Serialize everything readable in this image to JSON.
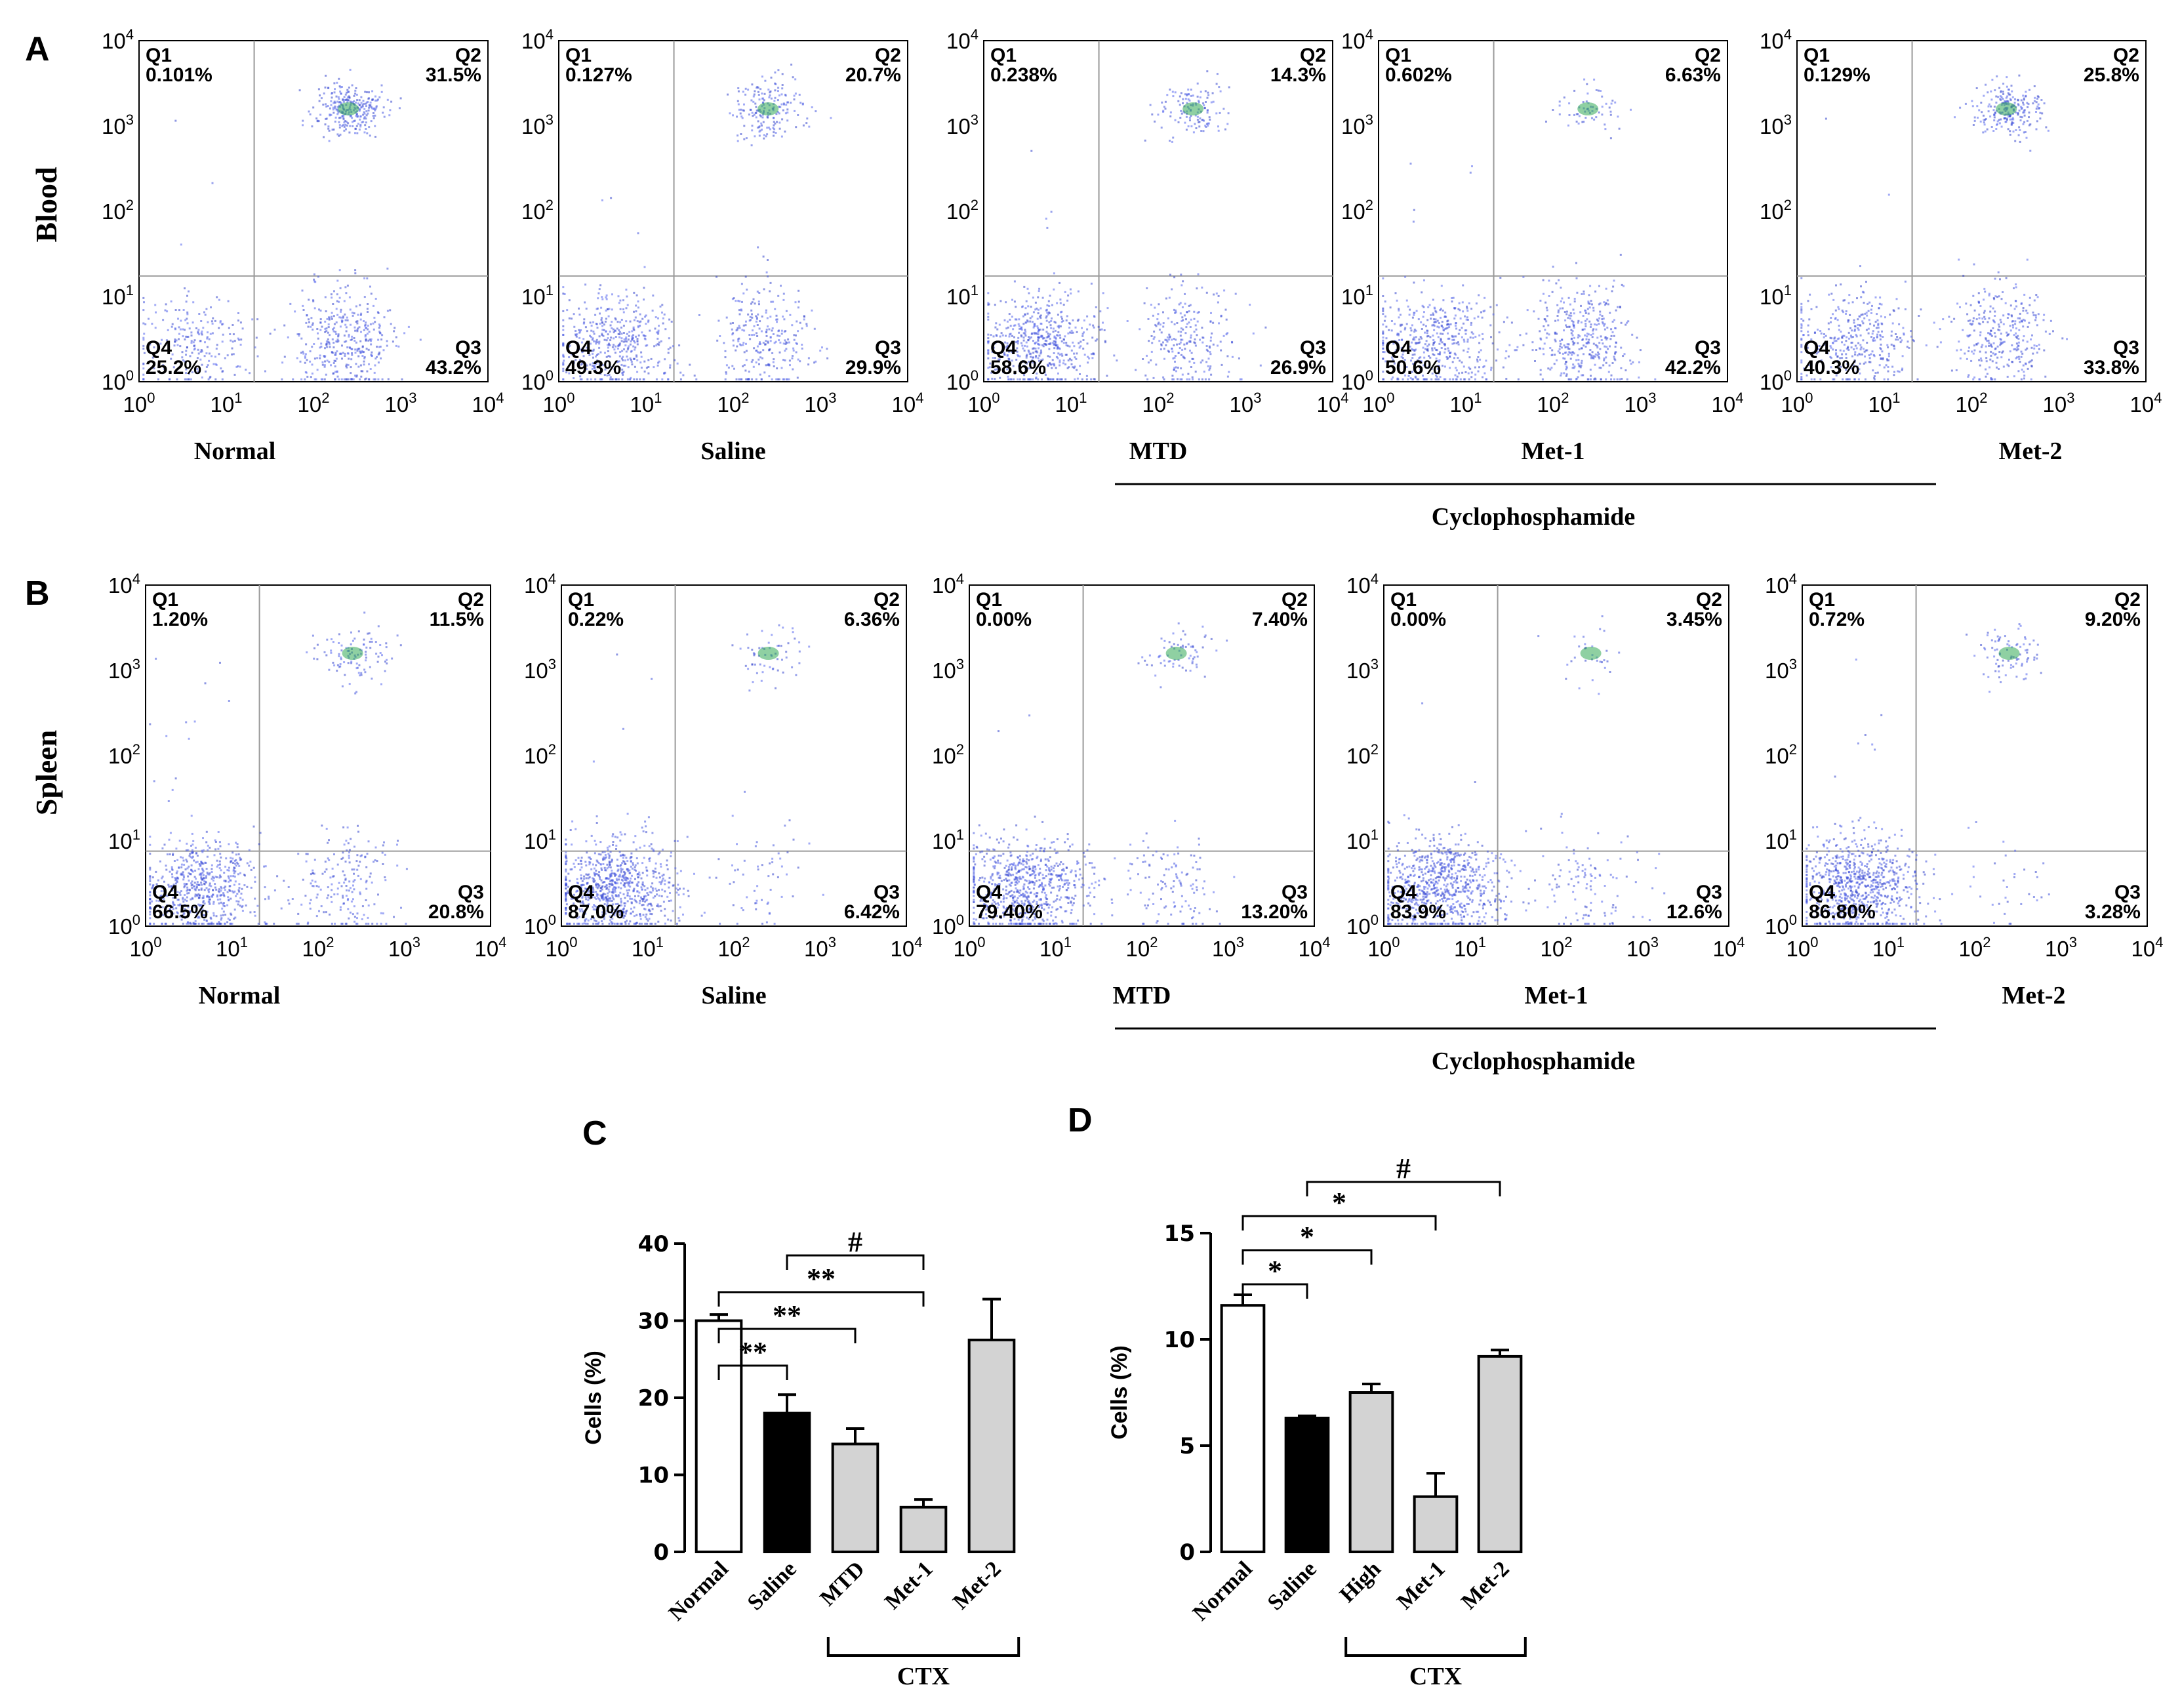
{
  "panels": {
    "A": {
      "letter": "A",
      "row_label": "Blood",
      "group_label": "Cyclophosphamide"
    },
    "B": {
      "letter": "B",
      "row_label": "Spleen",
      "group_label": "Cyclophosphamide"
    },
    "C": {
      "letter": "C"
    },
    "D": {
      "letter": "D"
    }
  },
  "chart_data": [
    {
      "type": "scatter",
      "panel": "A",
      "row": "Blood",
      "axis_scale": "log",
      "axis_ticks": [
        "10^0",
        "10^1",
        "10^2",
        "10^3",
        "10^4"
      ],
      "plots": [
        {
          "name": "Normal",
          "quadrants": {
            "Q1": "0.101%",
            "Q2": "31.5%",
            "Q3": "43.2%",
            "Q4": "25.2%"
          }
        },
        {
          "name": "Saline",
          "quadrants": {
            "Q1": "0.127%",
            "Q2": "20.7%",
            "Q3": "29.9%",
            "Q4": "49.3%"
          }
        },
        {
          "name": "MTD",
          "quadrants": {
            "Q1": "0.238%",
            "Q2": "14.3%",
            "Q3": "26.9%",
            "Q4": "58.6%"
          }
        },
        {
          "name": "Met-1",
          "quadrants": {
            "Q1": "0.602%",
            "Q2": "6.63%",
            "Q3": "42.2%",
            "Q4": "50.6%"
          }
        },
        {
          "name": "Met-2",
          "quadrants": {
            "Q1": "0.129%",
            "Q2": "25.8%",
            "Q3": "33.8%",
            "Q4": "40.3%"
          }
        }
      ]
    },
    {
      "type": "scatter",
      "panel": "B",
      "row": "Spleen",
      "axis_scale": "log",
      "axis_ticks": [
        "10^0",
        "10^1",
        "10^2",
        "10^3",
        "10^4"
      ],
      "plots": [
        {
          "name": "Normal",
          "quadrants": {
            "Q1": "1.20%",
            "Q2": "11.5%",
            "Q3": "20.8%",
            "Q4": "66.5%"
          }
        },
        {
          "name": "Saline",
          "quadrants": {
            "Q1": "0.22%",
            "Q2": "6.36%",
            "Q3": "6.42%",
            "Q4": "87.0%"
          }
        },
        {
          "name": "MTD",
          "quadrants": {
            "Q1": "0.00%",
            "Q2": "7.40%",
            "Q3": "13.20%",
            "Q4": "79.40%"
          }
        },
        {
          "name": "Met-1",
          "quadrants": {
            "Q1": "0.00%",
            "Q2": "3.45%",
            "Q3": "12.6%",
            "Q4": "83.9%"
          }
        },
        {
          "name": "Met-2",
          "quadrants": {
            "Q1": "0.72%",
            "Q2": "9.20%",
            "Q3": "3.28%",
            "Q4": "86.80%"
          }
        }
      ]
    },
    {
      "type": "bar",
      "panel": "C",
      "ylabel": "Cells (%)",
      "ylim": [
        0,
        40
      ],
      "yticks": [
        0,
        10,
        20,
        30,
        40
      ],
      "categories": [
        "Normal",
        "Saline",
        "MTD",
        "Met-1",
        "Met-2"
      ],
      "values": [
        30,
        18,
        14,
        5.8,
        27.5
      ],
      "errors": [
        0.8,
        2.4,
        2.0,
        1.0,
        5.3
      ],
      "fills": [
        "#ffffff",
        "#000000",
        "#d3d3d3",
        "#d3d3d3",
        "#d3d3d3"
      ],
      "group_label": "CTX",
      "significance": [
        {
          "from": 0,
          "to": 1,
          "label": "**"
        },
        {
          "from": 0,
          "to": 2,
          "label": "**"
        },
        {
          "from": 0,
          "to": 3,
          "label": "**"
        },
        {
          "from": 1,
          "to": 3,
          "label": "#"
        }
      ]
    },
    {
      "type": "bar",
      "panel": "D",
      "ylabel": "Cells (%)",
      "ylim": [
        0,
        15
      ],
      "yticks": [
        0,
        5,
        10,
        15
      ],
      "categories": [
        "Normal",
        "Saline",
        "High",
        "Met-1",
        "Met-2"
      ],
      "values": [
        11.6,
        6.3,
        7.5,
        2.6,
        9.2
      ],
      "errors": [
        0.5,
        0.1,
        0.4,
        1.1,
        0.3
      ],
      "fills": [
        "#ffffff",
        "#000000",
        "#d3d3d3",
        "#d3d3d3",
        "#d3d3d3"
      ],
      "group_label": "CTX",
      "significance": [
        {
          "from": 0,
          "to": 1,
          "label": "*"
        },
        {
          "from": 0,
          "to": 2,
          "label": "*"
        },
        {
          "from": 0,
          "to": 3,
          "label": "*"
        },
        {
          "from": 1,
          "to": 4,
          "label": "#"
        }
      ]
    }
  ]
}
